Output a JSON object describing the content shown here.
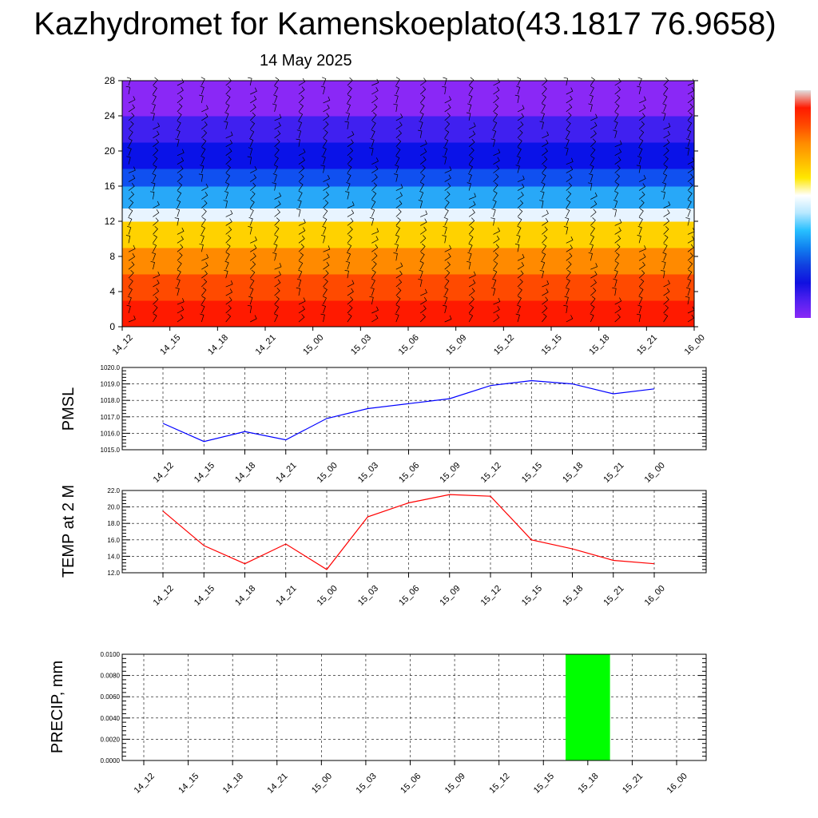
{
  "title": "Kazhydromet for Kamenskoeplato(43.1817 76.9658)",
  "date": "14 May 2025",
  "x_ticks": [
    "14_12",
    "14_15",
    "14_18",
    "14_21",
    "15_00",
    "15_03",
    "15_06",
    "15_09",
    "15_12",
    "15_15",
    "15_18",
    "15_21",
    "16_00"
  ],
  "chart_data": [
    {
      "type": "heatmap",
      "y_ticks": [
        "0",
        "4",
        "8",
        "12",
        "16",
        "20",
        "24",
        "28"
      ],
      "ylim": [
        0,
        28
      ],
      "color_bands": [
        {
          "from": 0,
          "to": 3,
          "color": "#ff1a00"
        },
        {
          "from": 3,
          "to": 6,
          "color": "#ff4a00"
        },
        {
          "from": 6,
          "to": 9,
          "color": "#ff8a00"
        },
        {
          "from": 9,
          "to": 12,
          "color": "#ffd200"
        },
        {
          "from": 12,
          "to": 13.5,
          "color": "#e8f4ff"
        },
        {
          "from": 13.5,
          "to": 16,
          "color": "#28a8f8"
        },
        {
          "from": 16,
          "to": 18,
          "color": "#1050f0"
        },
        {
          "from": 18,
          "to": 21,
          "color": "#0a12e8"
        },
        {
          "from": 21,
          "to": 24,
          "color": "#4020f0"
        },
        {
          "from": 24,
          "to": 28,
          "color": "#8a28f6"
        }
      ],
      "colorbar": [
        "#e0e0e0",
        "#ff1a00",
        "#ff4a00",
        "#ff8a00",
        "#ffb800",
        "#ffe800",
        "#ffffff",
        "#b8e8ff",
        "#28c0ff",
        "#1080f0",
        "#1040e0",
        "#1010e0",
        "#5020f0",
        "#8a28f6"
      ],
      "grid": false
    },
    {
      "type": "line",
      "ylabel": "PMSL",
      "ylim": [
        1015.0,
        1020.0
      ],
      "y_ticks": [
        "1015.0",
        "1016.0",
        "1017.0",
        "1018.0",
        "1019.0",
        "1020.0"
      ],
      "series": [
        {
          "color": "#0000ff",
          "values": [
            1016.6,
            1015.5,
            1016.1,
            1015.6,
            1016.9,
            1017.5,
            1017.8,
            1018.1,
            1018.9,
            1019.2,
            1019.0,
            1018.4,
            1018.7
          ]
        }
      ],
      "grid": true
    },
    {
      "type": "line",
      "ylabel": "TEMP at 2 M",
      "ylim": [
        12.0,
        22.0
      ],
      "y_ticks": [
        "12.0",
        "14.0",
        "16.0",
        "18.0",
        "20.0",
        "22.0"
      ],
      "series": [
        {
          "color": "#ff0000",
          "values": [
            19.5,
            15.3,
            13.1,
            15.5,
            12.4,
            18.8,
            20.5,
            21.5,
            21.3,
            16.0,
            14.9,
            13.5,
            13.1
          ]
        }
      ],
      "grid": true
    },
    {
      "type": "bar",
      "ylabel": "PRECIP, mm",
      "ylim": [
        0.0,
        0.01
      ],
      "y_ticks": [
        "0.0000",
        "0.0020",
        "0.0040",
        "0.0060",
        "0.0080",
        "0.0100"
      ],
      "bars": [
        {
          "from": "15_15",
          "to": "15_18",
          "value": 0.01,
          "color": "#00ff00"
        }
      ],
      "grid": true
    }
  ]
}
